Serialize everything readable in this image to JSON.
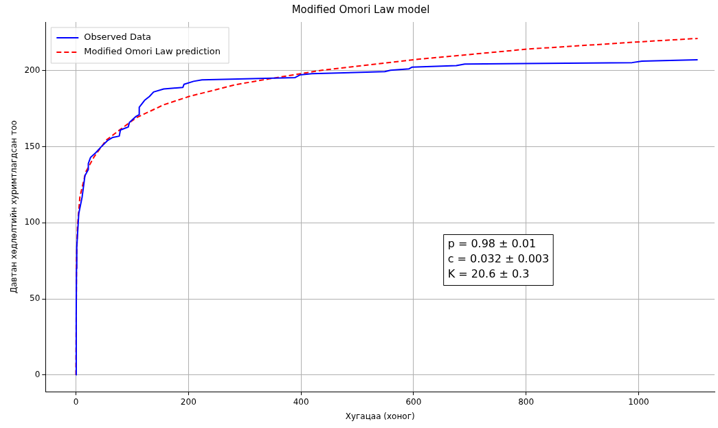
{
  "chart_data": {
    "type": "line",
    "title": "Modified Omori Law model",
    "xlabel": "Хугацаа (хоног)",
    "ylabel": "Давтан хөдлөлтийн хуримтлагдсан тоо",
    "xlim": [
      -54,
      1135
    ],
    "xticks": [
      0,
      200,
      400,
      600,
      800,
      1000
    ],
    "ylim": [
      -11,
      232
    ],
    "yticks": [
      0,
      50,
      100,
      150,
      200
    ],
    "grid": true,
    "legend": "top left",
    "marker": "none",
    "annotations": [
      "p = 0.98 ± 0.01",
      "c = 0.032 ± 0.003",
      "K = 20.6 ± 0.3"
    ],
    "series": [
      {
        "name": "Observed Data",
        "color": "#0000ff",
        "line_style": "solid",
        "x": [
          0,
          0.5,
          1,
          1.5,
          5,
          11,
          16,
          22,
          22,
          26,
          35,
          45,
          56,
          64.5,
          77,
          79,
          86,
          93,
          95,
          107,
          112,
          112.5,
          122,
          130.5,
          138,
          156,
          190,
          192,
          209,
          224,
          389,
          398,
          419.5,
          549,
          559,
          592,
          597,
          676,
          691,
          988.5,
          1006,
          1105
        ],
        "values": [
          0,
          40,
          70,
          84,
          106,
          117,
          131,
          135,
          139,
          143,
          146,
          150,
          154,
          156,
          157,
          161,
          162,
          163,
          166,
          170,
          171,
          176,
          180.5,
          183,
          186,
          188,
          189,
          191,
          193,
          194,
          195.4,
          197.2,
          198,
          199.4,
          200.3,
          201.2,
          202.3,
          203.3,
          204.3,
          205.3,
          206.3,
          207.2
        ]
      },
      {
        "name": "Modified Omori Law prediction",
        "color": "#ff0000",
        "line_style": "dashed",
        "x": [
          0,
          1,
          2.8,
          7,
          17.6,
          32.6,
          54,
          79,
          107,
          156,
          200.6,
          283.8,
          343,
          437,
          602.5,
          803,
          1003.7,
          1105
        ],
        "values": [
          0,
          75,
          98,
          117,
          133.6,
          143.6,
          154.4,
          161.4,
          169,
          177.6,
          183,
          190.8,
          194.6,
          200.3,
          207.3,
          214.2,
          219,
          221.2
        ]
      }
    ]
  }
}
